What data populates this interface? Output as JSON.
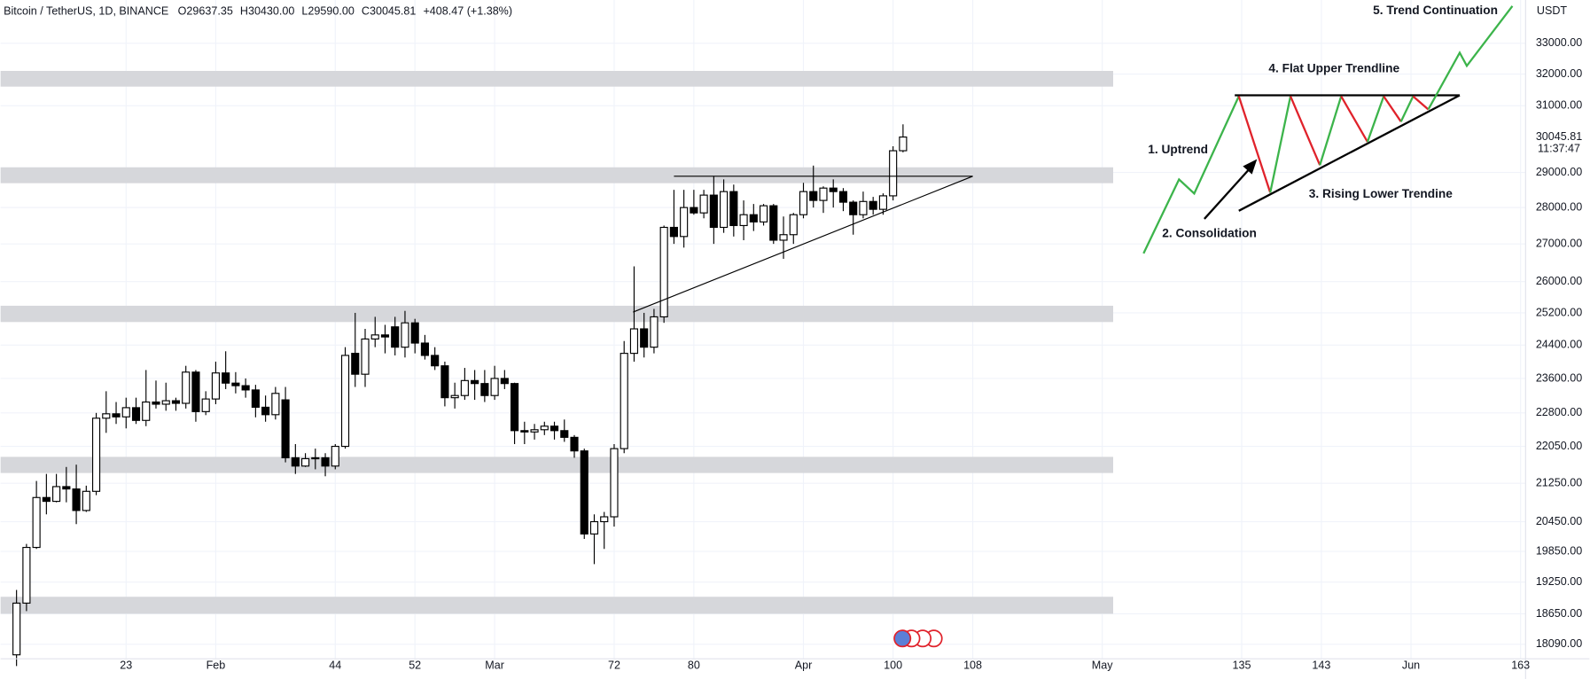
{
  "chart_data": {
    "type": "candlestick",
    "header": {
      "symbol": "Bitcoin / TetherUS, 1D, BINANCE",
      "open": "O29637.35",
      "high": "H30430.00",
      "low": "L29590.00",
      "close": "C30045.81",
      "change": "+408.47 (+1.38%)"
    },
    "currency": "USDT",
    "x": [
      12,
      13,
      14,
      15,
      16,
      17,
      18,
      19,
      20,
      21,
      22,
      23,
      24,
      25,
      26,
      27,
      28,
      29,
      30,
      31,
      32,
      33,
      34,
      35,
      36,
      37,
      38,
      39,
      40,
      41,
      42,
      43,
      44,
      45,
      46,
      47,
      48,
      49,
      50,
      51,
      52,
      53,
      54,
      55,
      56,
      57,
      58,
      59,
      60,
      61,
      62,
      63,
      64,
      65,
      66,
      67,
      68,
      69,
      70,
      71,
      72,
      73,
      74,
      75,
      76,
      77,
      78,
      79,
      80,
      81,
      82,
      83,
      84,
      85,
      86,
      87,
      88,
      89,
      90,
      91,
      92,
      93,
      94,
      95,
      96,
      97,
      98,
      99,
      100,
      101
    ],
    "open": [
      17900,
      18850,
      19930,
      20950,
      20870,
      21180,
      21130,
      20680,
      21080,
      22680,
      22780,
      22710,
      22920,
      22630,
      23050,
      23000,
      23080,
      23020,
      23750,
      22830,
      23120,
      23730,
      23490,
      23430,
      23330,
      22930,
      22760,
      23100,
      21800,
      21620,
      21780,
      21800,
      21620,
      22050,
      24200,
      23700,
      24550,
      24650,
      24850,
      24350,
      24950,
      24450,
      24150,
      23900,
      23150,
      23200,
      23550,
      23480,
      23200,
      23600,
      23480,
      22400,
      22370,
      22420,
      22500,
      22400,
      22250,
      21950,
      20200,
      20450,
      20550,
      22000,
      24200,
      24800,
      24350,
      25100,
      27450,
      27200,
      28000,
      27850,
      28350,
      27450,
      28450,
      27500,
      27800,
      27600,
      28050,
      27100,
      27250,
      27800,
      28450,
      28200,
      28550,
      28450,
      28150,
      27800,
      28170,
      27950,
      28330,
      29637.35
    ],
    "high": [
      19100,
      20000,
      21300,
      21450,
      21450,
      21600,
      21650,
      21200,
      22800,
      23300,
      23050,
      23150,
      23150,
      23800,
      23550,
      23500,
      23150,
      23900,
      23800,
      23300,
      24000,
      24250,
      23750,
      23600,
      23450,
      23200,
      23400,
      23400,
      22100,
      21900,
      22000,
      21900,
      22100,
      24350,
      25200,
      24800,
      25100,
      24900,
      25100,
      25250,
      25050,
      24650,
      24350,
      24000,
      23500,
      23850,
      23800,
      23800,
      23900,
      23800,
      23500,
      22600,
      22550,
      22600,
      22600,
      22650,
      22300,
      22000,
      20600,
      20650,
      22100,
      24500,
      26400,
      25200,
      25300,
      27500,
      28500,
      28500,
      28500,
      28500,
      28900,
      28800,
      28650,
      28200,
      28100,
      28100,
      28100,
      27750,
      27850,
      28700,
      29200,
      28600,
      28800,
      28550,
      28200,
      28450,
      28300,
      28400,
      29770,
      30430
    ],
    "low": [
      17700,
      18700,
      19900,
      20600,
      20850,
      20850,
      20400,
      20650,
      21000,
      22350,
      22550,
      22450,
      22550,
      22500,
      22900,
      22850,
      22850,
      22900,
      22600,
      22750,
      23000,
      23350,
      23250,
      23150,
      22700,
      22600,
      22650,
      21700,
      21450,
      21600,
      21550,
      21400,
      21550,
      22000,
      23400,
      23400,
      24350,
      24200,
      24150,
      24100,
      24200,
      24050,
      23800,
      22950,
      22900,
      23100,
      23100,
      23050,
      23100,
      23350,
      22100,
      22100,
      22200,
      22300,
      22200,
      22150,
      21800,
      20100,
      19600,
      19900,
      20350,
      21900,
      24000,
      24100,
      24200,
      24950,
      27000,
      26900,
      27800,
      27700,
      27000,
      27300,
      27200,
      27100,
      27350,
      27500,
      27000,
      26600,
      27000,
      27700,
      28000,
      27850,
      28000,
      27900,
      27250,
      27700,
      27800,
      27800,
      28200,
      29590
    ],
    "close": [
      18850,
      19930,
      20950,
      20870,
      21180,
      21130,
      20680,
      21080,
      22680,
      22780,
      22710,
      22920,
      22630,
      23050,
      23000,
      23080,
      23020,
      23750,
      22830,
      23120,
      23730,
      23490,
      23430,
      23330,
      22930,
      22760,
      23250,
      21800,
      21620,
      21780,
      21800,
      21620,
      22050,
      24150,
      23700,
      24550,
      24650,
      24600,
      24350,
      24950,
      24450,
      24150,
      23900,
      23150,
      23200,
      23550,
      23480,
      23200,
      23600,
      23480,
      22400,
      22370,
      22420,
      22500,
      22400,
      22250,
      21950,
      20200,
      20450,
      20550,
      22000,
      24200,
      24800,
      24350,
      25100,
      27450,
      27200,
      28000,
      27850,
      28350,
      27450,
      28450,
      27500,
      27800,
      27600,
      28050,
      27100,
      27250,
      27800,
      28450,
      28200,
      28550,
      28450,
      28150,
      27800,
      28170,
      27950,
      28330,
      29637,
      30045.81
    ],
    "up_color": "#ffffff",
    "down_color": "#000000",
    "last_label": "30045.81",
    "countdown": "11:37:47",
    "zones": [
      [
        31600,
        32100
      ],
      [
        28690,
        29150
      ],
      [
        24970,
        25380
      ],
      [
        21470,
        21820
      ],
      [
        18650,
        18970
      ]
    ],
    "zone_color": "#d6d7db",
    "trendlines": [
      {
        "x": [
          78,
          108
        ],
        "y": [
          28890,
          28890
        ]
      },
      {
        "x": [
          73.9,
          108
        ],
        "y": [
          25220,
          28890
        ]
      }
    ],
    "annotations": [
      "1. Uptrend",
      "2. Consolidation",
      "3. Rising Lower Trendine",
      "4. Flat Upper Trendline",
      "5. Trend Continuation"
    ],
    "log_scale": true,
    "grid": true,
    "xlim": [
      10.4,
      163.5
    ],
    "xticks": [
      23,
      {
        "value": 32,
        "label": "Feb"
      },
      44,
      52,
      {
        "value": 60,
        "label": "Mar"
      },
      72,
      80,
      {
        "value": 91,
        "label": "Apr"
      },
      100,
      108,
      {
        "value": 121,
        "label": "May"
      },
      135,
      143,
      {
        "value": 152,
        "label": "Jun"
      },
      163
    ],
    "ylim": [
      17830,
      34460
    ],
    "yticks": [
      {
        "value": 33000,
        "label": "33000.00"
      },
      {
        "value": 32000,
        "label": "32000.00"
      },
      {
        "value": 31000,
        "label": "31000.00"
      },
      {
        "value": 29000,
        "label": "29000.00"
      },
      {
        "value": 28000,
        "label": "28000.00"
      },
      {
        "value": 27000,
        "label": "27000.00"
      },
      {
        "value": 26000,
        "label": "26000.00"
      },
      {
        "value": 25200,
        "label": "25200.00"
      },
      {
        "value": 24400,
        "label": "24400.00"
      },
      {
        "value": 23600,
        "label": "23600.00"
      },
      {
        "value": 22800,
        "label": "22800.00"
      },
      {
        "value": 22050,
        "label": "22050.00"
      },
      {
        "value": 21250,
        "label": "21250.00"
      },
      {
        "value": 20450,
        "label": "20450.00"
      },
      {
        "value": 19850,
        "label": "19850.00"
      },
      {
        "value": 19250,
        "label": "19250.00"
      },
      {
        "value": 18650,
        "label": "18650.00"
      },
      {
        "value": 18090,
        "label": "18090.00"
      }
    ]
  }
}
